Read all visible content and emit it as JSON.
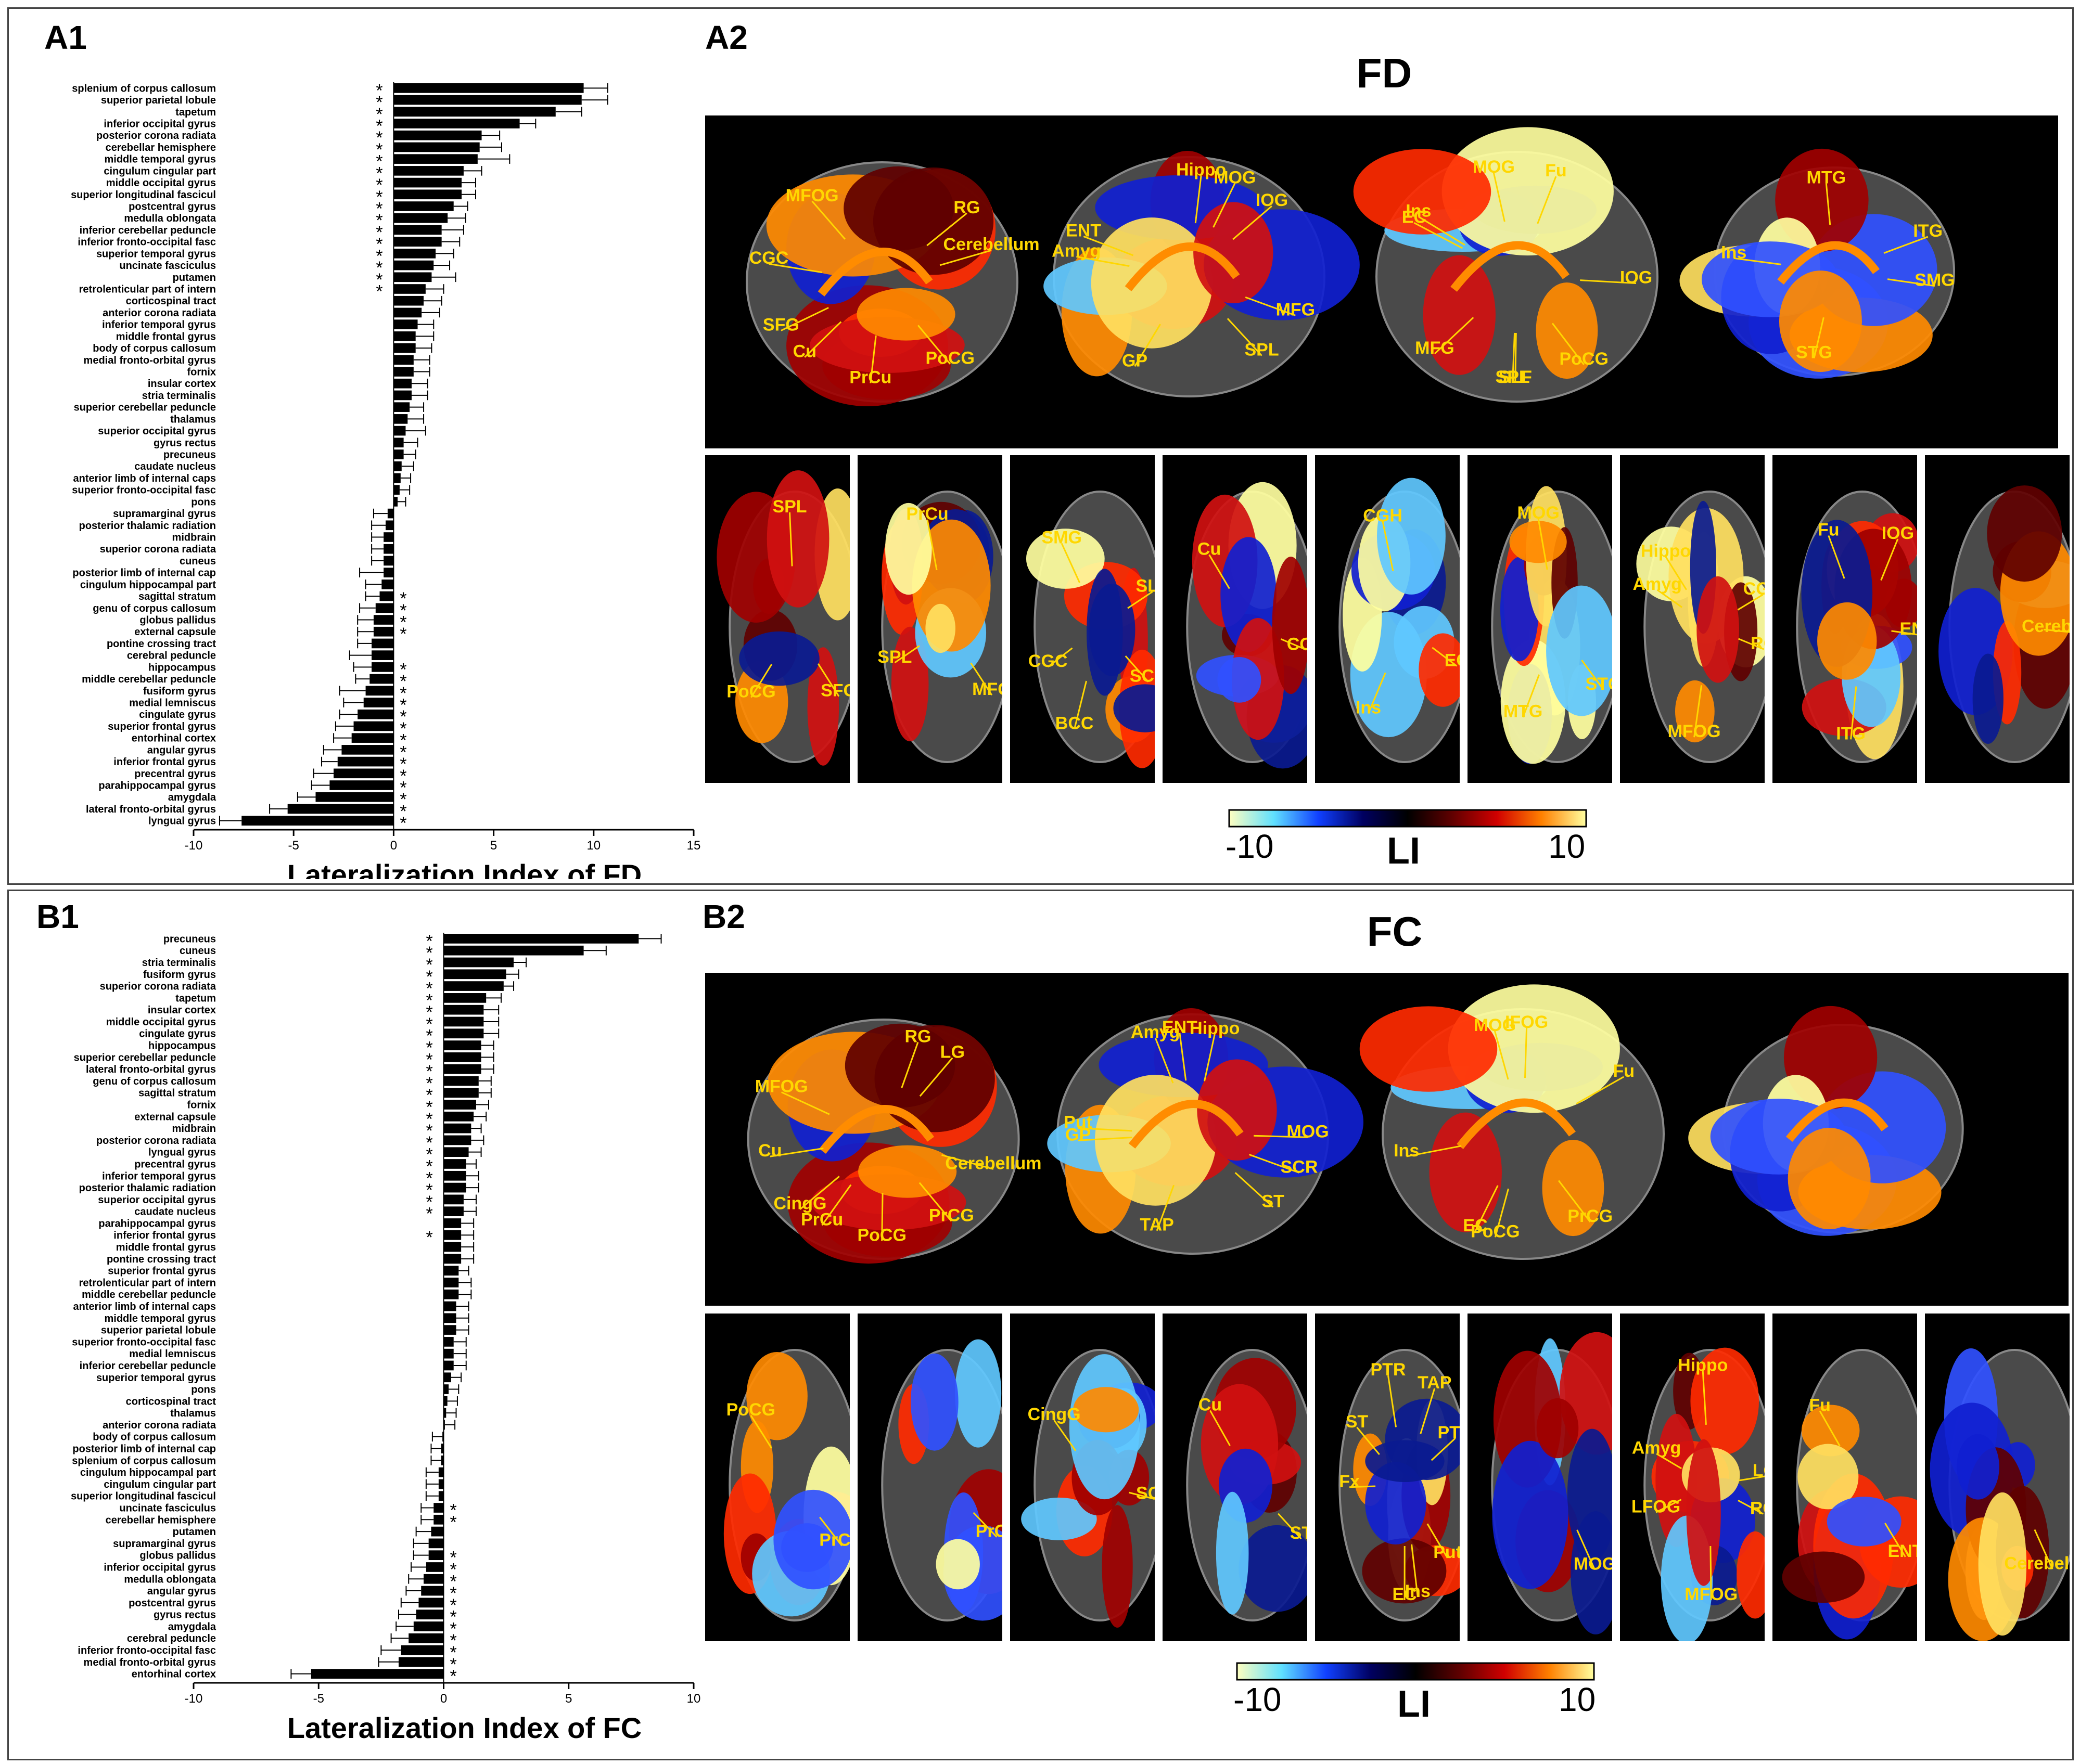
{
  "panels": {
    "a1": "A1",
    "a2": "A2",
    "b1": "B1",
    "b2": "B2",
    "fd_title": "FD",
    "fc_title": "FC"
  },
  "colorbar": {
    "min_label": "-10",
    "max_label": "10",
    "title": "LI",
    "colors": [
      "#ffffc0",
      "#60e0ff",
      "#1040ff",
      "#000060",
      "#000000",
      "#600000",
      "#d00000",
      "#ff8000",
      "#ffffa0"
    ]
  },
  "maps": {
    "fd_sagittal": [
      [
        "PoCG",
        "PrCu",
        "Cu",
        "SFG",
        "CGC",
        "MFOG",
        "RG",
        "Cerebellum"
      ],
      [
        "MFG",
        "SPL",
        "GP",
        "Amyg",
        "ENT",
        "Hippo",
        "MOG",
        "IOG"
      ],
      [
        "PoCG",
        "SPL",
        "SLF",
        "MFG",
        "EC",
        "Ins",
        "MOG",
        "Fu",
        "IOG"
      ],
      [
        "SMG",
        "STG",
        "Ins",
        "MTG",
        "ITG"
      ]
    ],
    "fd_axial": [
      [
        "SFG",
        "PoCG",
        "SPL"
      ],
      [
        "MFG",
        "SPL",
        "PrCu"
      ],
      [
        "SCR",
        "BCC",
        "CGC",
        "SMG",
        "SLF"
      ],
      [
        "CGC",
        "Cu"
      ],
      [
        "EC",
        "Ins",
        "CGH"
      ],
      [
        "STG",
        "MTG",
        "MOG"
      ],
      [
        "RG",
        "MFOG",
        "Amyg",
        "Hippo",
        "CGH"
      ],
      [
        "ENT",
        "ITG",
        "Fu",
        "IOG"
      ],
      [
        "Cerebellum"
      ]
    ],
    "fc_sagittal": [
      [
        "PrCG",
        "PoCG",
        "PrCu",
        "CingG",
        "Cu",
        "MFOG",
        "RG",
        "LG",
        "Cerebellum"
      ],
      [
        "SCR",
        "ST",
        "TAP",
        "GP",
        "Put",
        "Amyg",
        "ENT",
        "Hippo",
        "MOG"
      ],
      [
        "PrCG",
        "PoCG",
        "EC",
        "Ins",
        "MOG",
        "IFOG",
        "Fu"
      ],
      []
    ],
    "fc_axial": [
      [
        "PrCG",
        "PoCG"
      ],
      [
        "PrCu"
      ],
      [
        "SCR",
        "CingG"
      ],
      [
        "ST",
        "Cu"
      ],
      [
        "Put",
        "Ins",
        "EC",
        "Fx",
        "ST",
        "PTR",
        "TAP",
        "PTR"
      ],
      [
        "MOG"
      ],
      [
        "RG",
        "MFOG",
        "LFOG",
        "Amyg",
        "Hippo",
        "LG"
      ],
      [
        "ENT",
        "Fu"
      ],
      [
        "Cerebellum"
      ]
    ]
  },
  "chart_data": [
    {
      "type": "bar",
      "orientation": "horizontal",
      "panel": "A1",
      "xlabel": "Lateralization Index of FD",
      "xlim": [
        -10,
        15
      ],
      "xticks": [
        -10,
        -5,
        0,
        5,
        10,
        15
      ],
      "categories": [
        "splenium of corpus callosum",
        "superior parietal lobule",
        "tapetum",
        "inferior occipital gyrus",
        "posterior corona radiata",
        "cerebellar hemisphere",
        "middle temporal gyrus",
        "cingulum cingular part",
        "middle occipital gyrus",
        "superior longitudinal fascicul",
        "postcentral gyrus",
        "medulla oblongata",
        "inferior cerebellar peduncle",
        "inferior fronto-occipital fasc",
        "superior temporal gyrus",
        "uncinate fasciculus",
        "putamen",
        "retrolenticular part of intern",
        "corticospinal tract",
        "anterior corona radiata",
        "inferior temporal gyrus",
        "middle frontal gyrus",
        "body of corpus callosum",
        "medial fronto-orbital gyrus",
        "fornix",
        "insular cortex",
        "stria terminalis",
        "superior cerebellar peduncle",
        "thalamus",
        "superior occipital gyrus",
        "gyrus rectus",
        "precuneus",
        "caudate nucleus",
        "anterior limb of internal caps",
        "superior fronto-occipital fasc",
        "pons",
        "supramarginal gyrus",
        "posterior thalamic radiation",
        "midbrain",
        "superior corona radiata",
        "cuneus",
        "posterior limb of internal cap",
        "cingulum hippocampal part",
        "sagittal stratum",
        "genu of corpus callosum",
        "globus pallidus",
        "external capsule",
        "pontine crossing tract",
        "cerebral peduncle",
        "hippocampus",
        "middle cerebellar peduncle",
        "fusiform gyrus",
        "medial lemniscus",
        "cingulate gyrus",
        "superior frontal gyrus",
        "entorhinal cortex",
        "angular gyrus",
        "inferior frontal gyrus",
        "precentral gyrus",
        "parahippocampal gyrus",
        "amygdala",
        "lateral fronto-orbital gyrus",
        "lyngual gyrus"
      ],
      "values": [
        9.5,
        9.4,
        8.1,
        6.3,
        4.4,
        4.3,
        4.2,
        3.5,
        3.4,
        3.4,
        3.0,
        2.7,
        2.4,
        2.4,
        2.1,
        2.0,
        1.9,
        1.6,
        1.5,
        1.4,
        1.2,
        1.1,
        1.1,
        1.0,
        1.0,
        0.9,
        0.9,
        0.8,
        0.7,
        0.6,
        0.5,
        0.5,
        0.4,
        0.35,
        0.3,
        0.2,
        -0.3,
        -0.4,
        -0.5,
        -0.5,
        -0.5,
        -0.5,
        -0.6,
        -0.7,
        -0.9,
        -1.0,
        -1.0,
        -1.1,
        -1.1,
        -1.1,
        -1.2,
        -1.4,
        -1.5,
        -1.8,
        -2.0,
        -2.1,
        -2.6,
        -2.8,
        -3.0,
        -3.2,
        -3.9,
        -5.3,
        -7.6
      ],
      "errors": [
        1.2,
        1.3,
        1.3,
        0.8,
        0.9,
        1.1,
        1.6,
        0.9,
        0.7,
        0.7,
        0.7,
        0.9,
        1.1,
        0.9,
        0.9,
        0.8,
        1.2,
        0.9,
        0.9,
        0.9,
        0.8,
        0.9,
        0.8,
        0.8,
        0.8,
        0.8,
        0.8,
        0.7,
        0.8,
        1.0,
        0.7,
        0.6,
        0.6,
        0.5,
        0.5,
        0.4,
        0.7,
        0.7,
        0.6,
        0.6,
        0.6,
        1.2,
        0.8,
        0.7,
        0.8,
        0.8,
        0.8,
        0.7,
        1.1,
        0.9,
        0.7,
        1.3,
        1.0,
        0.9,
        0.9,
        0.9,
        0.9,
        0.8,
        1.0,
        0.9,
        0.9,
        0.9,
        1.1
      ],
      "significant": [
        1,
        1,
        1,
        1,
        1,
        1,
        1,
        1,
        1,
        1,
        1,
        1,
        1,
        1,
        1,
        1,
        1,
        1,
        0,
        0,
        0,
        0,
        0,
        0,
        0,
        0,
        0,
        0,
        0,
        0,
        0,
        0,
        0,
        0,
        0,
        0,
        0,
        0,
        0,
        0,
        0,
        0,
        0,
        1,
        1,
        1,
        1,
        0,
        0,
        1,
        1,
        1,
        1,
        1,
        1,
        1,
        1,
        1,
        1,
        1,
        1,
        1,
        1
      ],
      "significance_marker": "*"
    },
    {
      "type": "bar",
      "orientation": "horizontal",
      "panel": "B1",
      "xlabel": "Lateralization Index of FC",
      "xlim": [
        -10,
        10
      ],
      "xticks": [
        -10,
        -5,
        0,
        5,
        10
      ],
      "categories": [
        "precuneus",
        "cuneus",
        "stria terminalis",
        "fusiform gyrus",
        "superior corona radiata",
        "tapetum",
        "insular cortex",
        "middle occipital gyrus",
        "cingulate gyrus",
        "hippocampus",
        "superior cerebellar peduncle",
        "lateral fronto-orbital gyrus",
        "genu of corpus callosum",
        "sagittal stratum",
        "fornix",
        "external capsule",
        "midbrain",
        "posterior corona radiata",
        "lyngual gyrus",
        "precentral gyrus",
        "inferior temporal gyrus",
        "posterior thalamic radiation",
        "superior occipital gyrus",
        "caudate nucleus",
        "parahippocampal gyrus",
        "inferior frontal gyrus",
        "middle frontal gyrus",
        "pontine crossing tract",
        "superior frontal gyrus",
        "retrolenticular part of intern",
        "middle cerebellar peduncle",
        "anterior limb of internal caps",
        "middle temporal gyrus",
        "superior parietal lobule",
        "superior fronto-occipital fasc",
        "medial lemniscus",
        "inferior cerebellar peduncle",
        "superior temporal gyrus",
        "pons",
        "corticospinal tract",
        "thalamus",
        "anterior corona radiata",
        "body of corpus callosum",
        "posterior limb of internal cap",
        "splenium of corpus callosum",
        "cingulum hippocampal part",
        "cingulum cingular part",
        "superior longitudinal fascicul",
        "uncinate fasciculus",
        "cerebellar hemisphere",
        "putamen",
        "supramarginal gyrus",
        "globus pallidus",
        "inferior occipital gyrus",
        "medulla oblongata",
        "angular gyrus",
        "postcentral gyrus",
        "gyrus rectus",
        "amygdala",
        "cerebral peduncle",
        "inferior fronto-occipital fasc",
        "medial fronto-orbital gyrus",
        "entorhinal cortex"
      ],
      "values": [
        7.8,
        5.6,
        2.8,
        2.5,
        2.4,
        1.7,
        1.6,
        1.6,
        1.6,
        1.5,
        1.5,
        1.5,
        1.4,
        1.4,
        1.3,
        1.2,
        1.1,
        1.1,
        1.0,
        0.9,
        0.9,
        0.9,
        0.8,
        0.8,
        0.7,
        0.7,
        0.7,
        0.7,
        0.6,
        0.6,
        0.6,
        0.5,
        0.5,
        0.5,
        0.4,
        0.4,
        0.4,
        0.3,
        0.2,
        0.15,
        0.1,
        0.05,
        -0.05,
        -0.1,
        -0.1,
        -0.2,
        -0.2,
        -0.2,
        -0.4,
        -0.4,
        -0.5,
        -0.6,
        -0.6,
        -0.7,
        -0.8,
        -0.9,
        -1.0,
        -1.1,
        -1.2,
        -1.4,
        -1.7,
        -1.8,
        -5.3
      ],
      "errors": [
        0.9,
        0.9,
        0.5,
        0.5,
        0.4,
        0.6,
        0.6,
        0.6,
        0.6,
        0.5,
        0.5,
        0.5,
        0.5,
        0.5,
        0.5,
        0.5,
        0.4,
        0.5,
        0.5,
        0.4,
        0.5,
        0.5,
        0.5,
        0.5,
        0.5,
        0.5,
        0.5,
        0.5,
        0.4,
        0.5,
        0.5,
        0.5,
        0.5,
        0.5,
        0.5,
        0.5,
        0.5,
        0.4,
        0.4,
        0.4,
        0.4,
        0.4,
        0.4,
        0.4,
        0.4,
        0.5,
        0.5,
        0.5,
        0.5,
        0.5,
        0.6,
        0.6,
        0.6,
        0.6,
        0.6,
        0.6,
        0.7,
        0.7,
        0.7,
        0.7,
        0.8,
        0.8,
        0.8
      ],
      "significant": [
        1,
        1,
        1,
        1,
        1,
        1,
        1,
        1,
        1,
        1,
        1,
        1,
        1,
        1,
        1,
        1,
        1,
        1,
        1,
        1,
        1,
        1,
        1,
        1,
        0,
        1,
        0,
        0,
        0,
        0,
        0,
        0,
        0,
        0,
        0,
        0,
        0,
        0,
        0,
        0,
        0,
        0,
        0,
        0,
        0,
        0,
        0,
        0,
        1,
        1,
        0,
        0,
        1,
        1,
        1,
        1,
        1,
        1,
        1,
        1,
        1,
        1,
        1
      ],
      "significance_marker": "*"
    }
  ]
}
